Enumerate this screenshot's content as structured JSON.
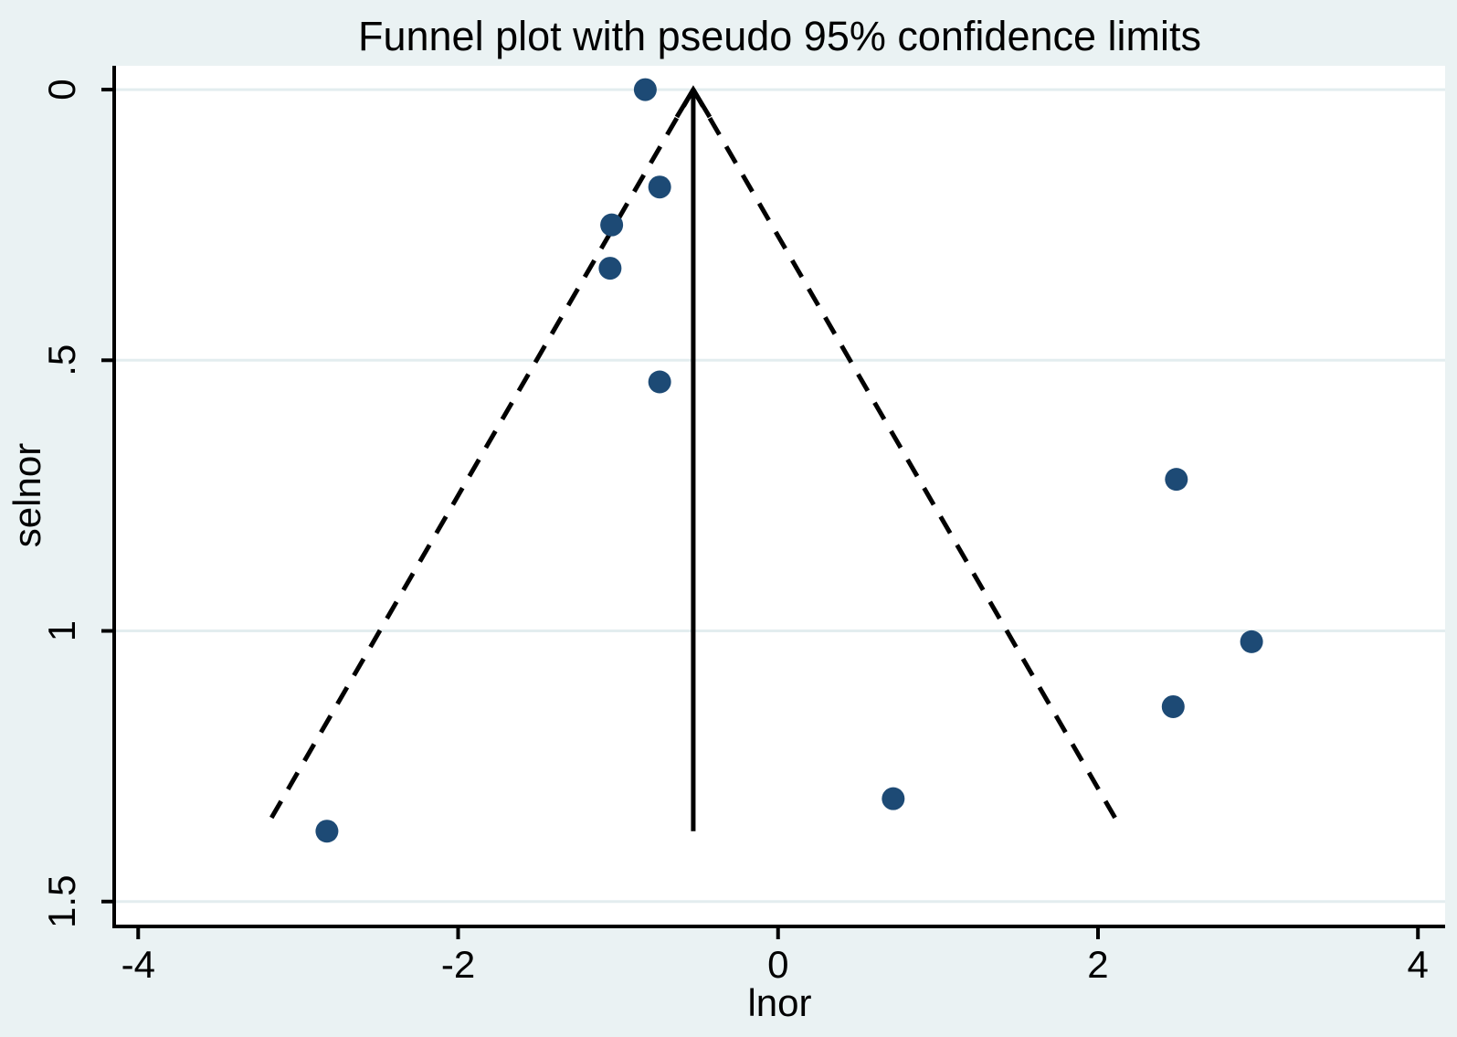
{
  "chart_data": {
    "type": "scatter",
    "title": "Funnel plot with pseudo 95% confidence limits",
    "xlabel": "lnor",
    "ylabel": "selnor",
    "x_ticks": {
      "values": [
        -4,
        -2,
        0,
        2,
        4
      ],
      "labels": [
        "-4",
        "-2",
        "0",
        "2",
        "4"
      ]
    },
    "y_ticks": {
      "values": [
        0,
        0.5,
        1,
        1.5
      ],
      "labels": [
        "0",
        ".5",
        "1",
        "1.5"
      ]
    },
    "xlim": [
      -4.15,
      4.17
    ],
    "ylim": [
      -0.044,
      1.546
    ],
    "y_axis_reversed": true,
    "grid": "horizontal",
    "legend": "none",
    "series": [
      {
        "name": "studies",
        "points": [
          {
            "lnor": -0.83,
            "selnor": 0.0
          },
          {
            "lnor": -0.74,
            "selnor": 0.18
          },
          {
            "lnor": -1.04,
            "selnor": 0.25
          },
          {
            "lnor": -1.05,
            "selnor": 0.33
          },
          {
            "lnor": -0.74,
            "selnor": 0.54
          },
          {
            "lnor": 2.49,
            "selnor": 0.72
          },
          {
            "lnor": 2.96,
            "selnor": 1.02
          },
          {
            "lnor": 2.47,
            "selnor": 1.14
          },
          {
            "lnor": 0.72,
            "selnor": 1.31
          },
          {
            "lnor": -2.82,
            "selnor": 1.37
          }
        ]
      }
    ],
    "funnel": {
      "center_lnor": -0.53,
      "se_multiplier": 1.96,
      "se_start": 0,
      "se_end": 1.36,
      "center_line_se_end": 1.37,
      "limit_style": "dashed",
      "center_style": "solid-arrow-up"
    },
    "colors": {
      "marker": "#1d4a75",
      "background": "#eaf2f3",
      "plot_background": "#ffffff",
      "gridline": "#e3edef",
      "axis": "#000000",
      "funnel_line": "#000000",
      "text": "#000000"
    }
  }
}
